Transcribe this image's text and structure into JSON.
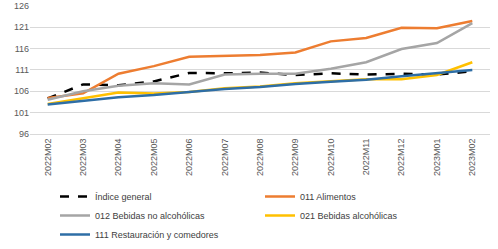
{
  "chart_data": {
    "type": "line",
    "categories": [
      "2022M02",
      "2022M03",
      "2022M04",
      "2022M05",
      "2022M06",
      "2022M07",
      "2022M08",
      "2022M09",
      "2022M10",
      "2022M11",
      "2022M12",
      "2023M01",
      "2023M02"
    ],
    "series": [
      {
        "name": "Índice general",
        "color": "#000000",
        "line_style": "dashed",
        "values": [
          104.3,
          107.6,
          107.4,
          108.3,
          110.3,
          110.2,
          110.4,
          109.8,
          110.2,
          109.9,
          110.1,
          109.9,
          110.7
        ]
      },
      {
        "name": "011 Alimentos",
        "color": "#ED7D31",
        "line_style": "solid",
        "values": [
          104.4,
          105.5,
          110.1,
          111.9,
          114.1,
          114.3,
          114.5,
          115.1,
          117.7,
          118.5,
          120.9,
          120.8,
          122.5
        ]
      },
      {
        "name": "012 Bebidas no alcohólicas",
        "color": "#A5A5A5",
        "line_style": "solid",
        "values": [
          104.0,
          106.0,
          107.3,
          107.9,
          107.6,
          109.9,
          110.1,
          110.1,
          111.3,
          112.8,
          115.9,
          117.3,
          122.0
        ]
      },
      {
        "name": "021 Bebidas alcohólicas",
        "color": "#FFC000",
        "line_style": "solid",
        "values": [
          103.0,
          104.3,
          105.7,
          105.5,
          105.8,
          106.7,
          107.1,
          107.9,
          108.4,
          108.8,
          108.8,
          109.8,
          112.8
        ]
      },
      {
        "name": "111 Restauración y comedores",
        "color": "#2E6EA6",
        "line_style": "solid",
        "values": [
          102.9,
          103.7,
          104.6,
          105.1,
          105.8,
          106.5,
          107.0,
          107.7,
          108.2,
          108.7,
          109.5,
          110.2,
          111.0
        ]
      }
    ],
    "ylim": [
      96,
      126
    ],
    "yticks": [
      96,
      101,
      106,
      111,
      116,
      121,
      126
    ],
    "grid": true,
    "legend": "bottom",
    "marker": "none"
  }
}
